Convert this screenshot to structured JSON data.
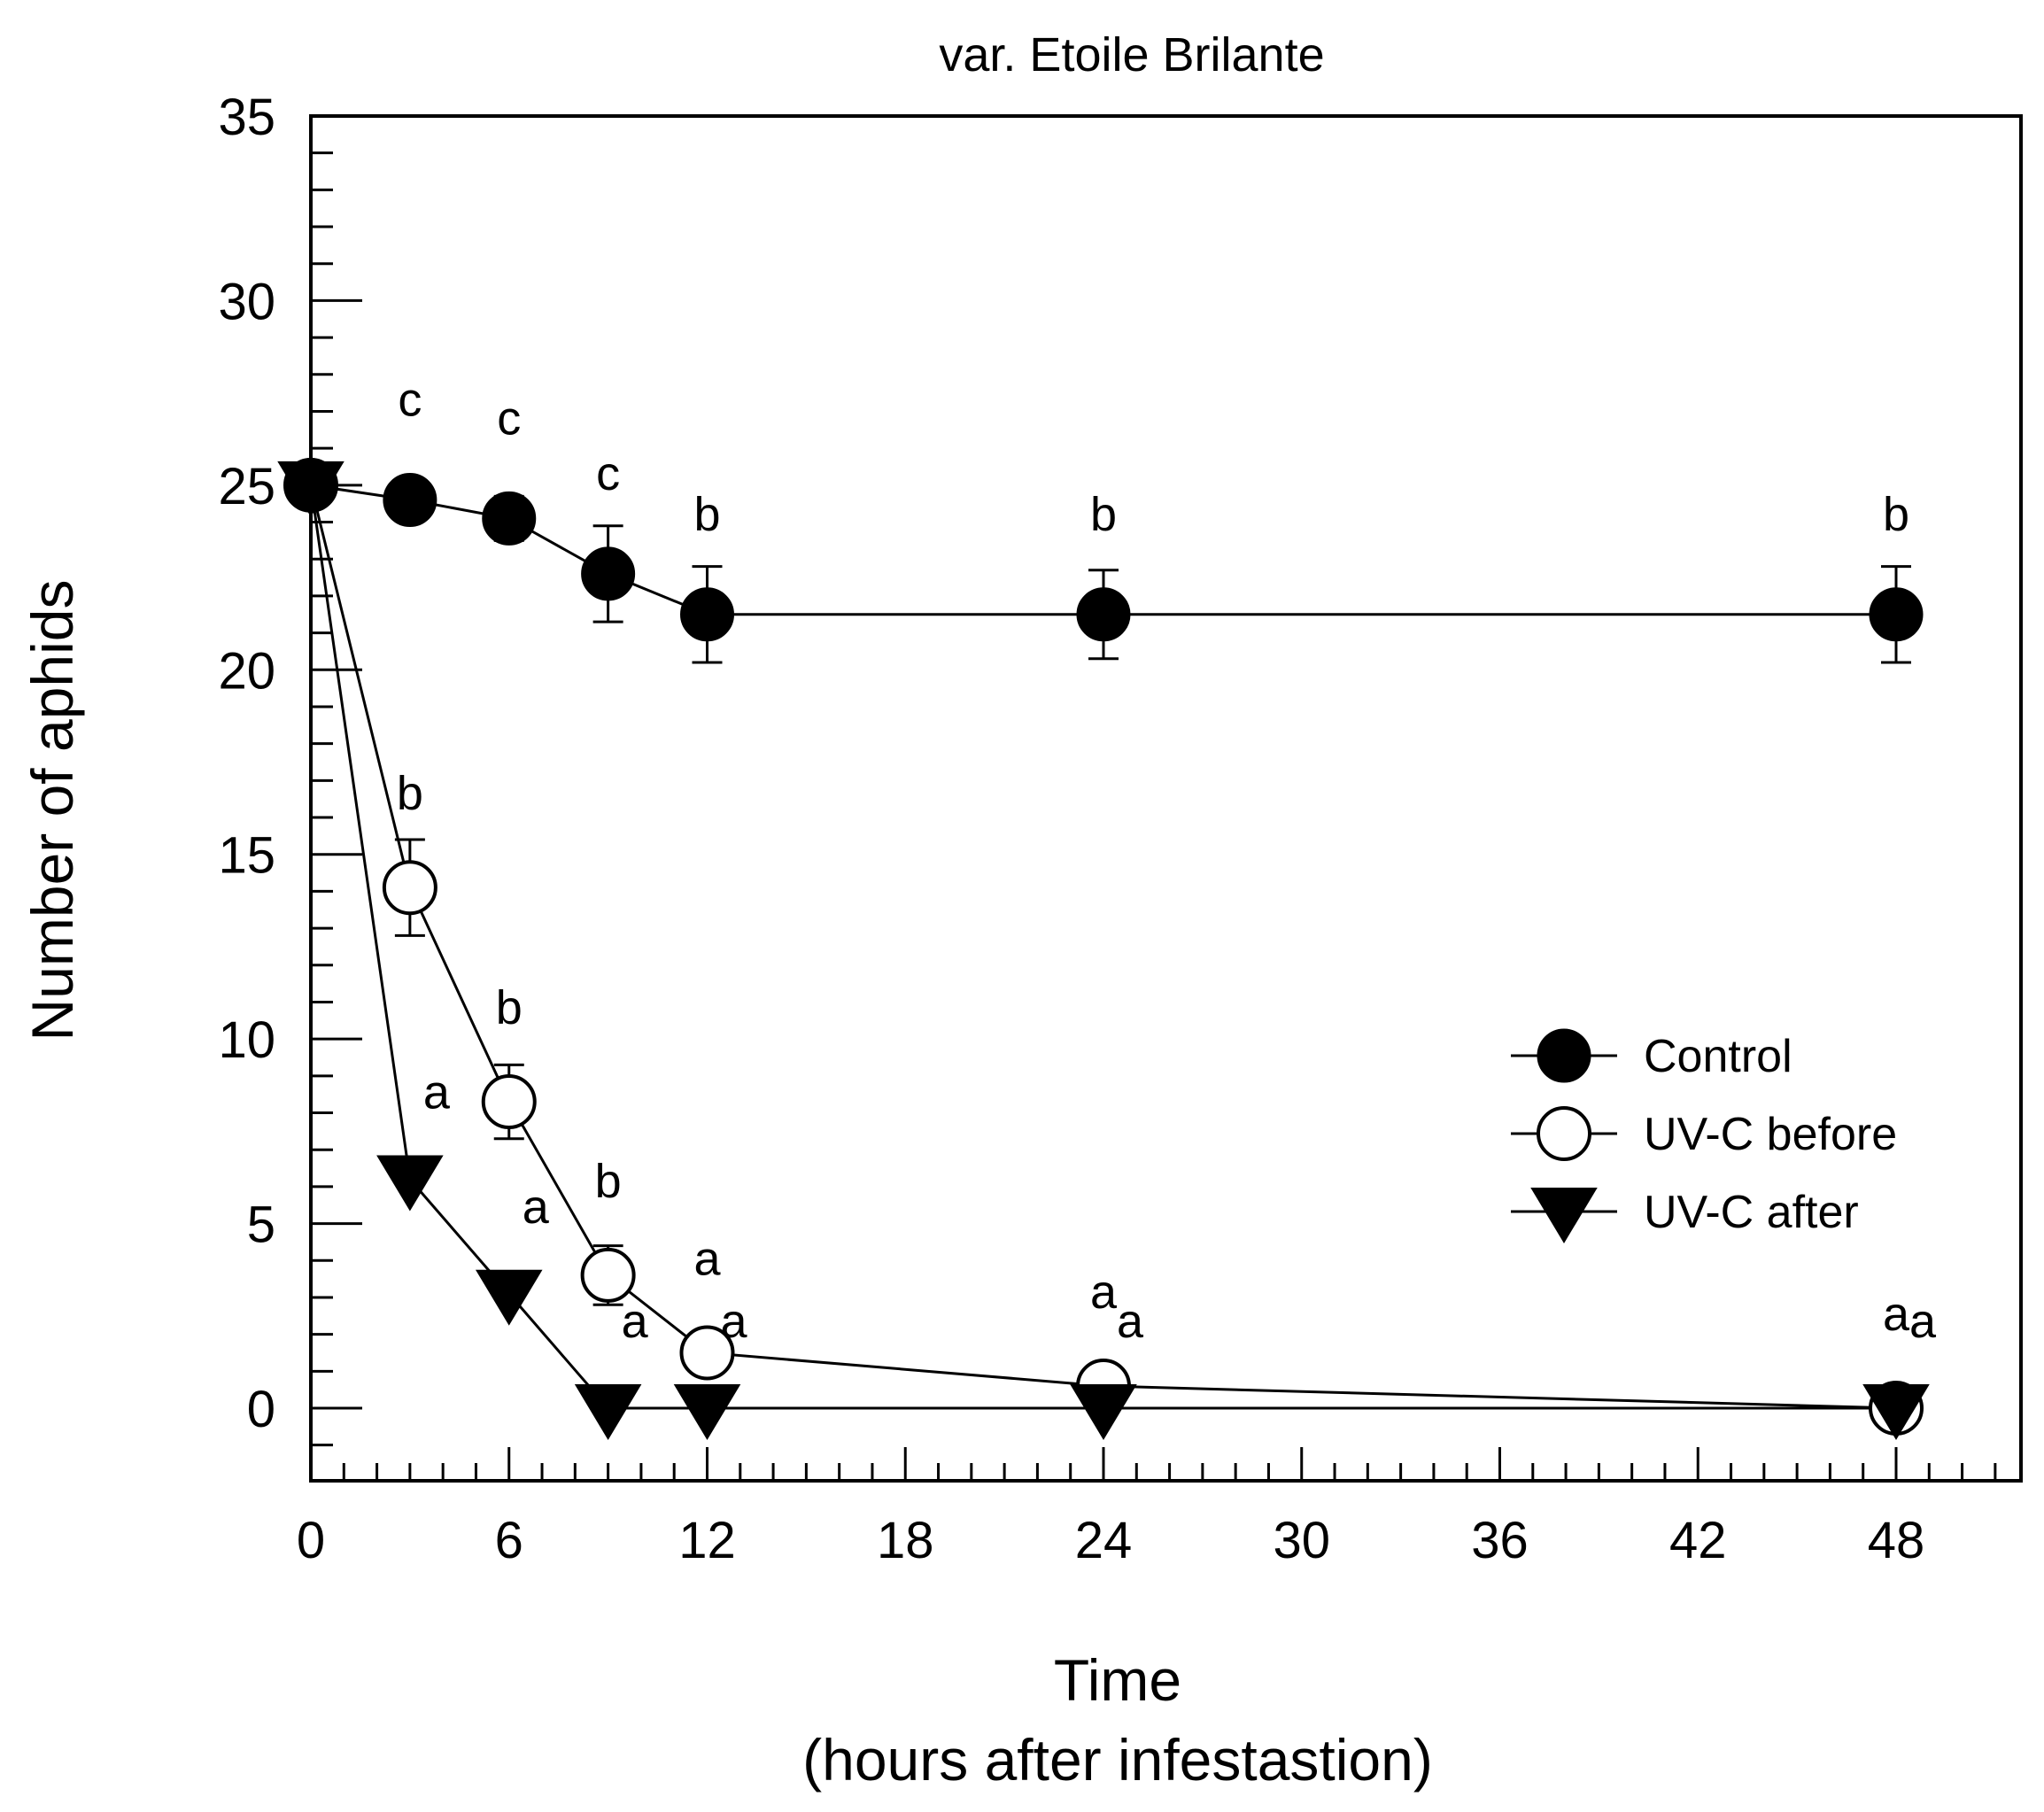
{
  "chart_data": {
    "type": "line",
    "title": "var. Etoile Brilante",
    "xlabel": "Time",
    "xlabel_line2": "(hours after infestastion)",
    "ylabel": "Number of aphids",
    "xlim": [
      0,
      52
    ],
    "ylim": [
      -2,
      35
    ],
    "xticks": [
      0,
      6,
      12,
      18,
      24,
      30,
      36,
      42,
      48
    ],
    "xtick_labels": [
      "0",
      "6",
      "12",
      "18",
      "24",
      "30",
      "36",
      "42",
      "48"
    ],
    "yticks": [
      0,
      5,
      10,
      15,
      20,
      25,
      30,
      35
    ],
    "ytick_labels": [
      "0",
      "5",
      "10",
      "15",
      "20",
      "25",
      "30",
      "35"
    ],
    "legend_position": "center-right",
    "series": [
      {
        "name": "Control",
        "marker": "filled-circle",
        "x": [
          0,
          3,
          6,
          9,
          12,
          24,
          48
        ],
        "y": [
          25,
          24.6,
          24.1,
          22.6,
          21.5,
          21.5,
          21.5
        ],
        "error": [
          0,
          0,
          0.6,
          1.3,
          1.3,
          1.2,
          1.3
        ],
        "labels": [
          "",
          "c",
          "c",
          "c",
          "b",
          "b",
          "b"
        ]
      },
      {
        "name": "UV-C before",
        "marker": "open-circle",
        "x": [
          0,
          3,
          6,
          9,
          12,
          24,
          48
        ],
        "y": [
          25,
          14.1,
          8.3,
          3.6,
          1.5,
          0.6,
          0
        ],
        "error": [
          0,
          1.3,
          1.0,
          0.8,
          0,
          0,
          0
        ],
        "labels": [
          "",
          "b",
          "b",
          "b",
          "a",
          "a",
          "a"
        ]
      },
      {
        "name": "UV-C after",
        "marker": "filled-triangle-down",
        "x": [
          0,
          3,
          6,
          9,
          12,
          24,
          48
        ],
        "y": [
          25,
          6.2,
          3.1,
          0,
          0,
          0,
          0
        ],
        "error": [
          0,
          0,
          0,
          0,
          0,
          0,
          0
        ],
        "labels": [
          "",
          "a",
          "a",
          "a",
          "a",
          "a",
          "a"
        ]
      }
    ]
  }
}
